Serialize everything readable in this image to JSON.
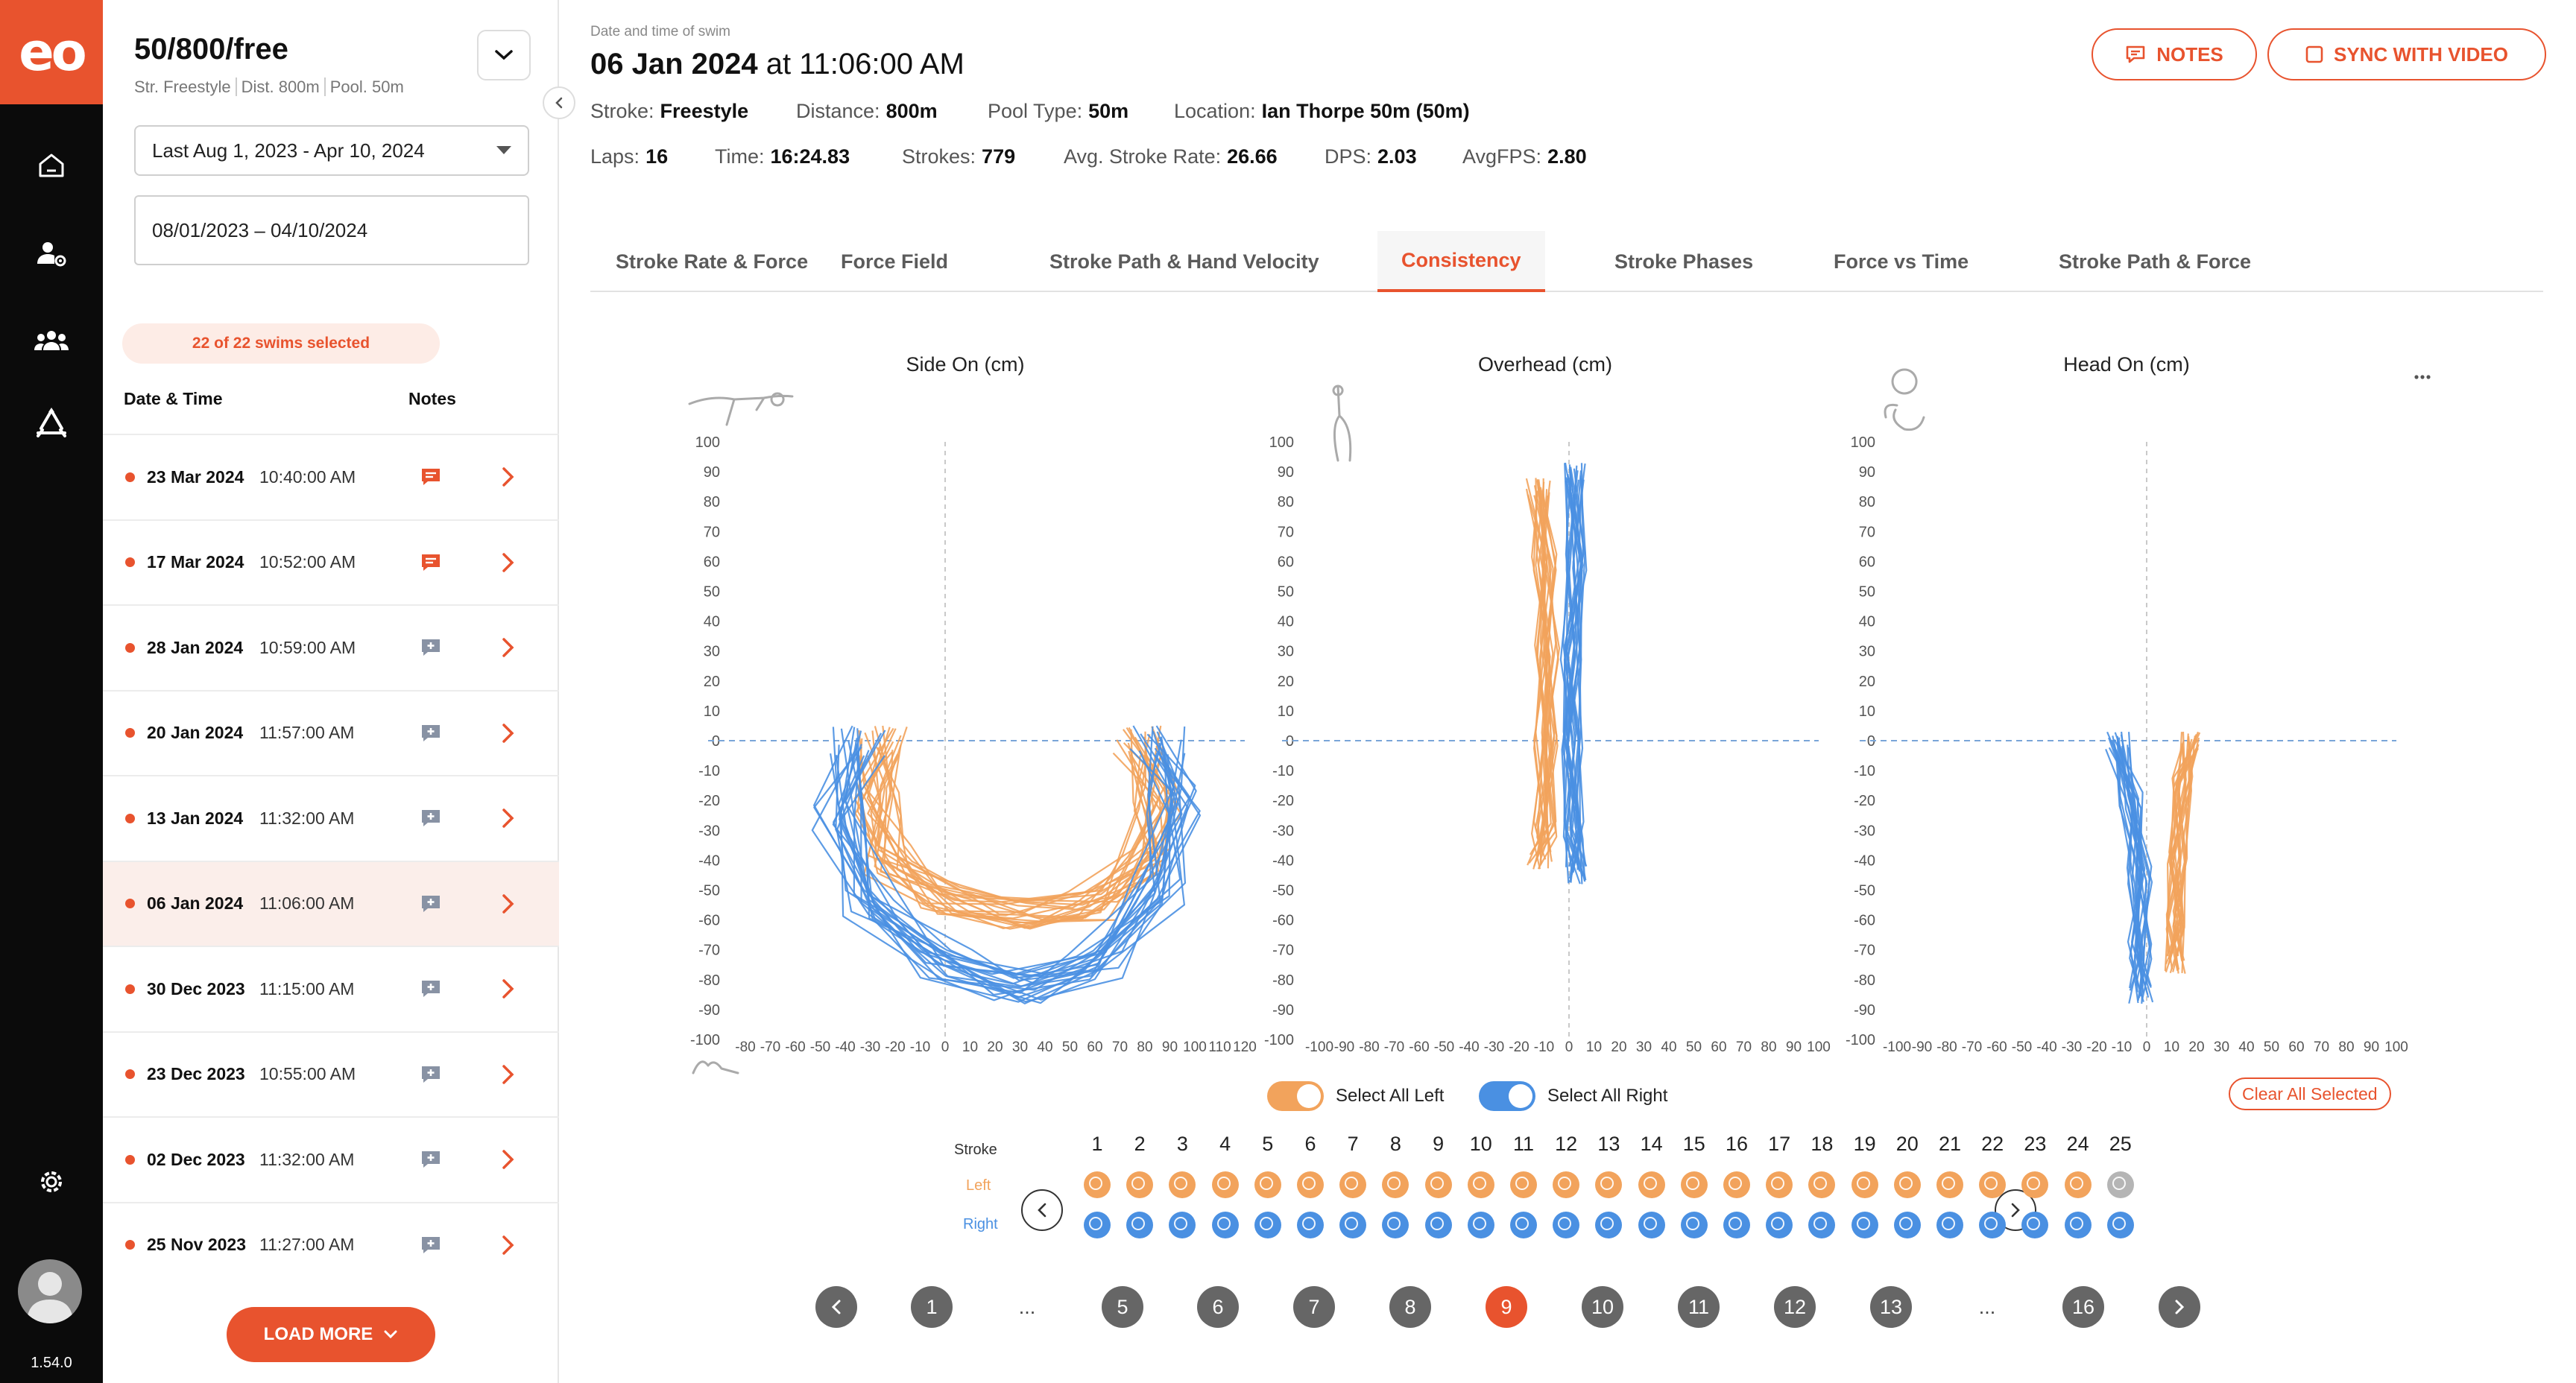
{
  "app": {
    "logo": "eo",
    "version": "1.54.0"
  },
  "rail": {
    "items": [
      "home-icon",
      "user-settings-icon",
      "team-icon",
      "recycle-icon"
    ],
    "settings": "gear-icon"
  },
  "swim": {
    "title": "50/800/free",
    "sub": [
      "Str. Freestyle",
      "Dist. 800m",
      "Pool. 50m"
    ],
    "date_select": "Last  Aug 1, 2023 - Apr 10, 2024",
    "date_range": "08/01/2023 – 04/10/2024",
    "selected_badge": "22 of 22 swims selected",
    "col_date": "Date & Time",
    "col_notes": "Notes",
    "rows": [
      {
        "date": "23 Mar 2024",
        "time": "10:40:00 AM",
        "has_note": true
      },
      {
        "date": "17 Mar 2024",
        "time": "10:52:00 AM",
        "has_note": true
      },
      {
        "date": "28 Jan 2024",
        "time": "10:59:00 AM",
        "has_note": false
      },
      {
        "date": "20 Jan 2024",
        "time": "11:57:00 AM",
        "has_note": false
      },
      {
        "date": "13 Jan 2024",
        "time": "11:32:00 AM",
        "has_note": false
      },
      {
        "date": "06 Jan 2024",
        "time": "11:06:00 AM",
        "has_note": false,
        "selected": true
      },
      {
        "date": "30 Dec 2023",
        "time": "11:15:00 AM",
        "has_note": false
      },
      {
        "date": "23 Dec 2023",
        "time": "10:55:00 AM",
        "has_note": false
      },
      {
        "date": "02 Dec 2023",
        "time": "11:32:00 AM",
        "has_note": false
      },
      {
        "date": "25 Nov 2023",
        "time": "11:27:00 AM",
        "has_note": false
      }
    ],
    "load_more": "LOAD MORE"
  },
  "header": {
    "dt_label": "Date and time of swim",
    "date": "06 Jan 2024",
    "time": "at 11:06:00 AM",
    "notes_btn": "NOTES",
    "sync_btn": "SYNC WITH VIDEO",
    "meta1": [
      {
        "k": "Stroke:",
        "v": "Freestyle"
      },
      {
        "k": "Distance:",
        "v": "800m"
      },
      {
        "k": "Pool Type:",
        "v": "50m"
      },
      {
        "k": "Location:",
        "v": "Ian Thorpe 50m (50m)"
      }
    ],
    "meta2": [
      {
        "k": "Laps:",
        "v": "16"
      },
      {
        "k": "Time:",
        "v": "16:24.83"
      },
      {
        "k": "Strokes:",
        "v": "779"
      },
      {
        "k": "Avg. Stroke Rate:",
        "v": "26.66"
      },
      {
        "k": "DPS:",
        "v": "2.03"
      },
      {
        "k": "AvgFPS:",
        "v": "2.80"
      }
    ]
  },
  "tabs": [
    "Stroke Rate & Force",
    "Force Field",
    "Stroke Path & Hand Velocity",
    "Consistency",
    "Stroke Phases",
    "Force vs Time",
    "Stroke Path & Force"
  ],
  "active_tab": "Consistency",
  "colors": {
    "accent": "#e8532e",
    "left": "#f2a35c",
    "right": "#4a90e2"
  },
  "chart_data": [
    {
      "type": "line",
      "title": "Side On (cm)",
      "x_ticks": [
        "-80",
        "-70",
        "-60",
        "-50",
        "-40",
        "-30",
        "-20",
        "-10",
        "0",
        "10",
        "20",
        "30",
        "40",
        "50",
        "60",
        "70",
        "80",
        "90",
        "100",
        "110",
        "120"
      ],
      "xlim": [
        -80,
        120
      ],
      "y_ticks": [
        "100",
        "90",
        "80",
        "70",
        "60",
        "50",
        "40",
        "30",
        "20",
        "10",
        "0",
        "-10",
        "-20",
        "-30",
        "-40",
        "-50",
        "-60",
        "-70",
        "-80",
        "-90",
        "-100"
      ],
      "ylim": [
        -100,
        100
      ],
      "series": [
        {
          "name": "Left",
          "color": "#f2a35c",
          "base": [
            [
              -25,
              0
            ],
            [
              -28,
              -20
            ],
            [
              -22,
              -40
            ],
            [
              0,
              -53
            ],
            [
              30,
              -58
            ],
            [
              60,
              -55
            ],
            [
              80,
              -40
            ],
            [
              84,
              -20
            ],
            [
              78,
              0
            ]
          ]
        },
        {
          "name": "Right",
          "color": "#4a90e2",
          "base": [
            [
              -35,
              0
            ],
            [
              -42,
              -25
            ],
            [
              -30,
              -55
            ],
            [
              0,
              -75
            ],
            [
              30,
              -83
            ],
            [
              60,
              -75
            ],
            [
              85,
              -50
            ],
            [
              92,
              -20
            ],
            [
              85,
              0
            ]
          ]
        }
      ]
    },
    {
      "type": "line",
      "title": "Overhead (cm)",
      "x_ticks": [
        "-100",
        "-90",
        "-80",
        "-70",
        "-60",
        "-50",
        "-40",
        "-30",
        "-20",
        "-10",
        "0",
        "10",
        "20",
        "30",
        "40",
        "50",
        "60",
        "70",
        "80",
        "90",
        "100"
      ],
      "xlim": [
        -100,
        100
      ],
      "y_ticks": [
        "100",
        "90",
        "80",
        "70",
        "60",
        "50",
        "40",
        "30",
        "20",
        "10",
        "0",
        "-10",
        "-20",
        "-30",
        "-40",
        "-50",
        "-60",
        "-70",
        "-80",
        "-90",
        "-100"
      ],
      "ylim": [
        -100,
        100
      ],
      "series": [
        {
          "name": "Left",
          "color": "#f2a35c",
          "base": [
            [
              -12,
              85
            ],
            [
              -10,
              60
            ],
            [
              -9,
              30
            ],
            [
              -9,
              0
            ],
            [
              -10,
              -30
            ],
            [
              -12,
              -40
            ]
          ]
        },
        {
          "name": "Right",
          "color": "#4a90e2",
          "base": [
            [
              2,
              90
            ],
            [
              3,
              60
            ],
            [
              1,
              30
            ],
            [
              1,
              0
            ],
            [
              2,
              -30
            ],
            [
              3,
              -45
            ]
          ]
        }
      ]
    },
    {
      "type": "line",
      "title": "Head On (cm)",
      "x_ticks": [
        "-100",
        "-90",
        "-80",
        "-70",
        "-60",
        "-50",
        "-40",
        "-30",
        "-20",
        "-10",
        "0",
        "10",
        "20",
        "30",
        "40",
        "50",
        "60",
        "70",
        "80",
        "90",
        "100"
      ],
      "xlim": [
        -100,
        100
      ],
      "y_ticks": [
        "100",
        "90",
        "80",
        "70",
        "60",
        "50",
        "40",
        "30",
        "20",
        "10",
        "0",
        "-10",
        "-20",
        "-30",
        "-40",
        "-50",
        "-60",
        "-70",
        "-80",
        "-90",
        "-100"
      ],
      "ylim": [
        -100,
        100
      ],
      "series": [
        {
          "name": "Left",
          "color": "#f2a35c",
          "base": [
            [
              18,
              0
            ],
            [
              14,
              -15
            ],
            [
              12,
              -40
            ],
            [
              12,
              -60
            ],
            [
              11,
              -75
            ]
          ]
        },
        {
          "name": "Right",
          "color": "#4a90e2",
          "base": [
            [
              -12,
              0
            ],
            [
              -6,
              -20
            ],
            [
              -3,
              -45
            ],
            [
              -3,
              -70
            ],
            [
              -2,
              -85
            ]
          ]
        }
      ]
    }
  ],
  "controls": {
    "select_left": "Select All Left",
    "select_right": "Select All Right",
    "clear": "Clear All Selected",
    "stroke_label": "Stroke",
    "left_label": "Left",
    "right_label": "Right",
    "strokes": [
      "1",
      "2",
      "3",
      "4",
      "5",
      "6",
      "7",
      "8",
      "9",
      "10",
      "11",
      "12",
      "13",
      "14",
      "15",
      "16",
      "17",
      "18",
      "19",
      "20",
      "21",
      "22",
      "23",
      "24",
      "25"
    ]
  },
  "pager": {
    "items": [
      "prev",
      "1",
      "...",
      "5",
      "6",
      "7",
      "8",
      "9",
      "10",
      "11",
      "12",
      "13",
      "...",
      "16",
      "next"
    ],
    "active": "9"
  }
}
